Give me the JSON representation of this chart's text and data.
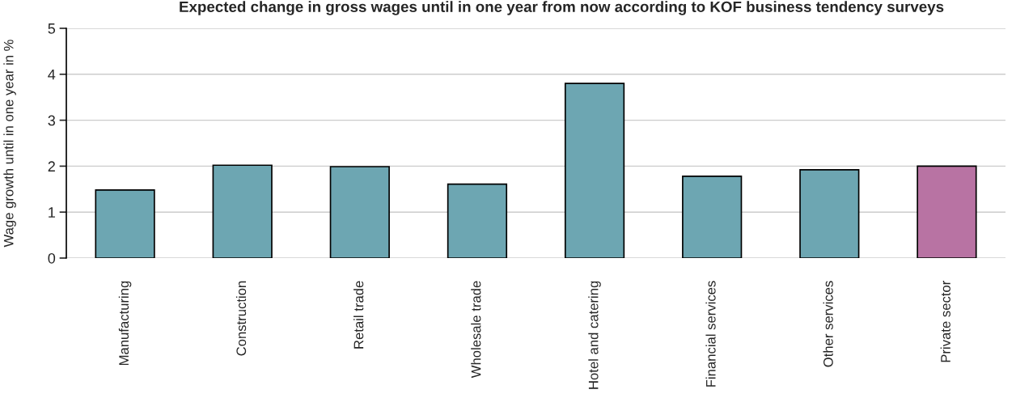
{
  "chart_data": {
    "type": "bar",
    "title": "Expected change in gross wages until in one year from now according to KOF business tendency surveys",
    "ylabel": "Wage growth until in one year in %",
    "categories": [
      "Manufacturing",
      "Construction",
      "Retail trade",
      "Wholesale trade",
      "Hotel and catering",
      "Financial services",
      "Other services",
      "Private sector"
    ],
    "values": [
      1.48,
      2.02,
      1.99,
      1.61,
      3.8,
      1.78,
      1.92,
      2.0
    ],
    "colors": [
      "#61adbe",
      "#61adbe",
      "#61adbe",
      "#61adbe",
      "#61adbe",
      "#61adbe",
      "#61adbe",
      "#c467a8"
    ],
    "ylim": [
      0,
      5
    ],
    "yticks": [
      0,
      1,
      2,
      3,
      4,
      5
    ],
    "grid": "y",
    "legend": false
  }
}
